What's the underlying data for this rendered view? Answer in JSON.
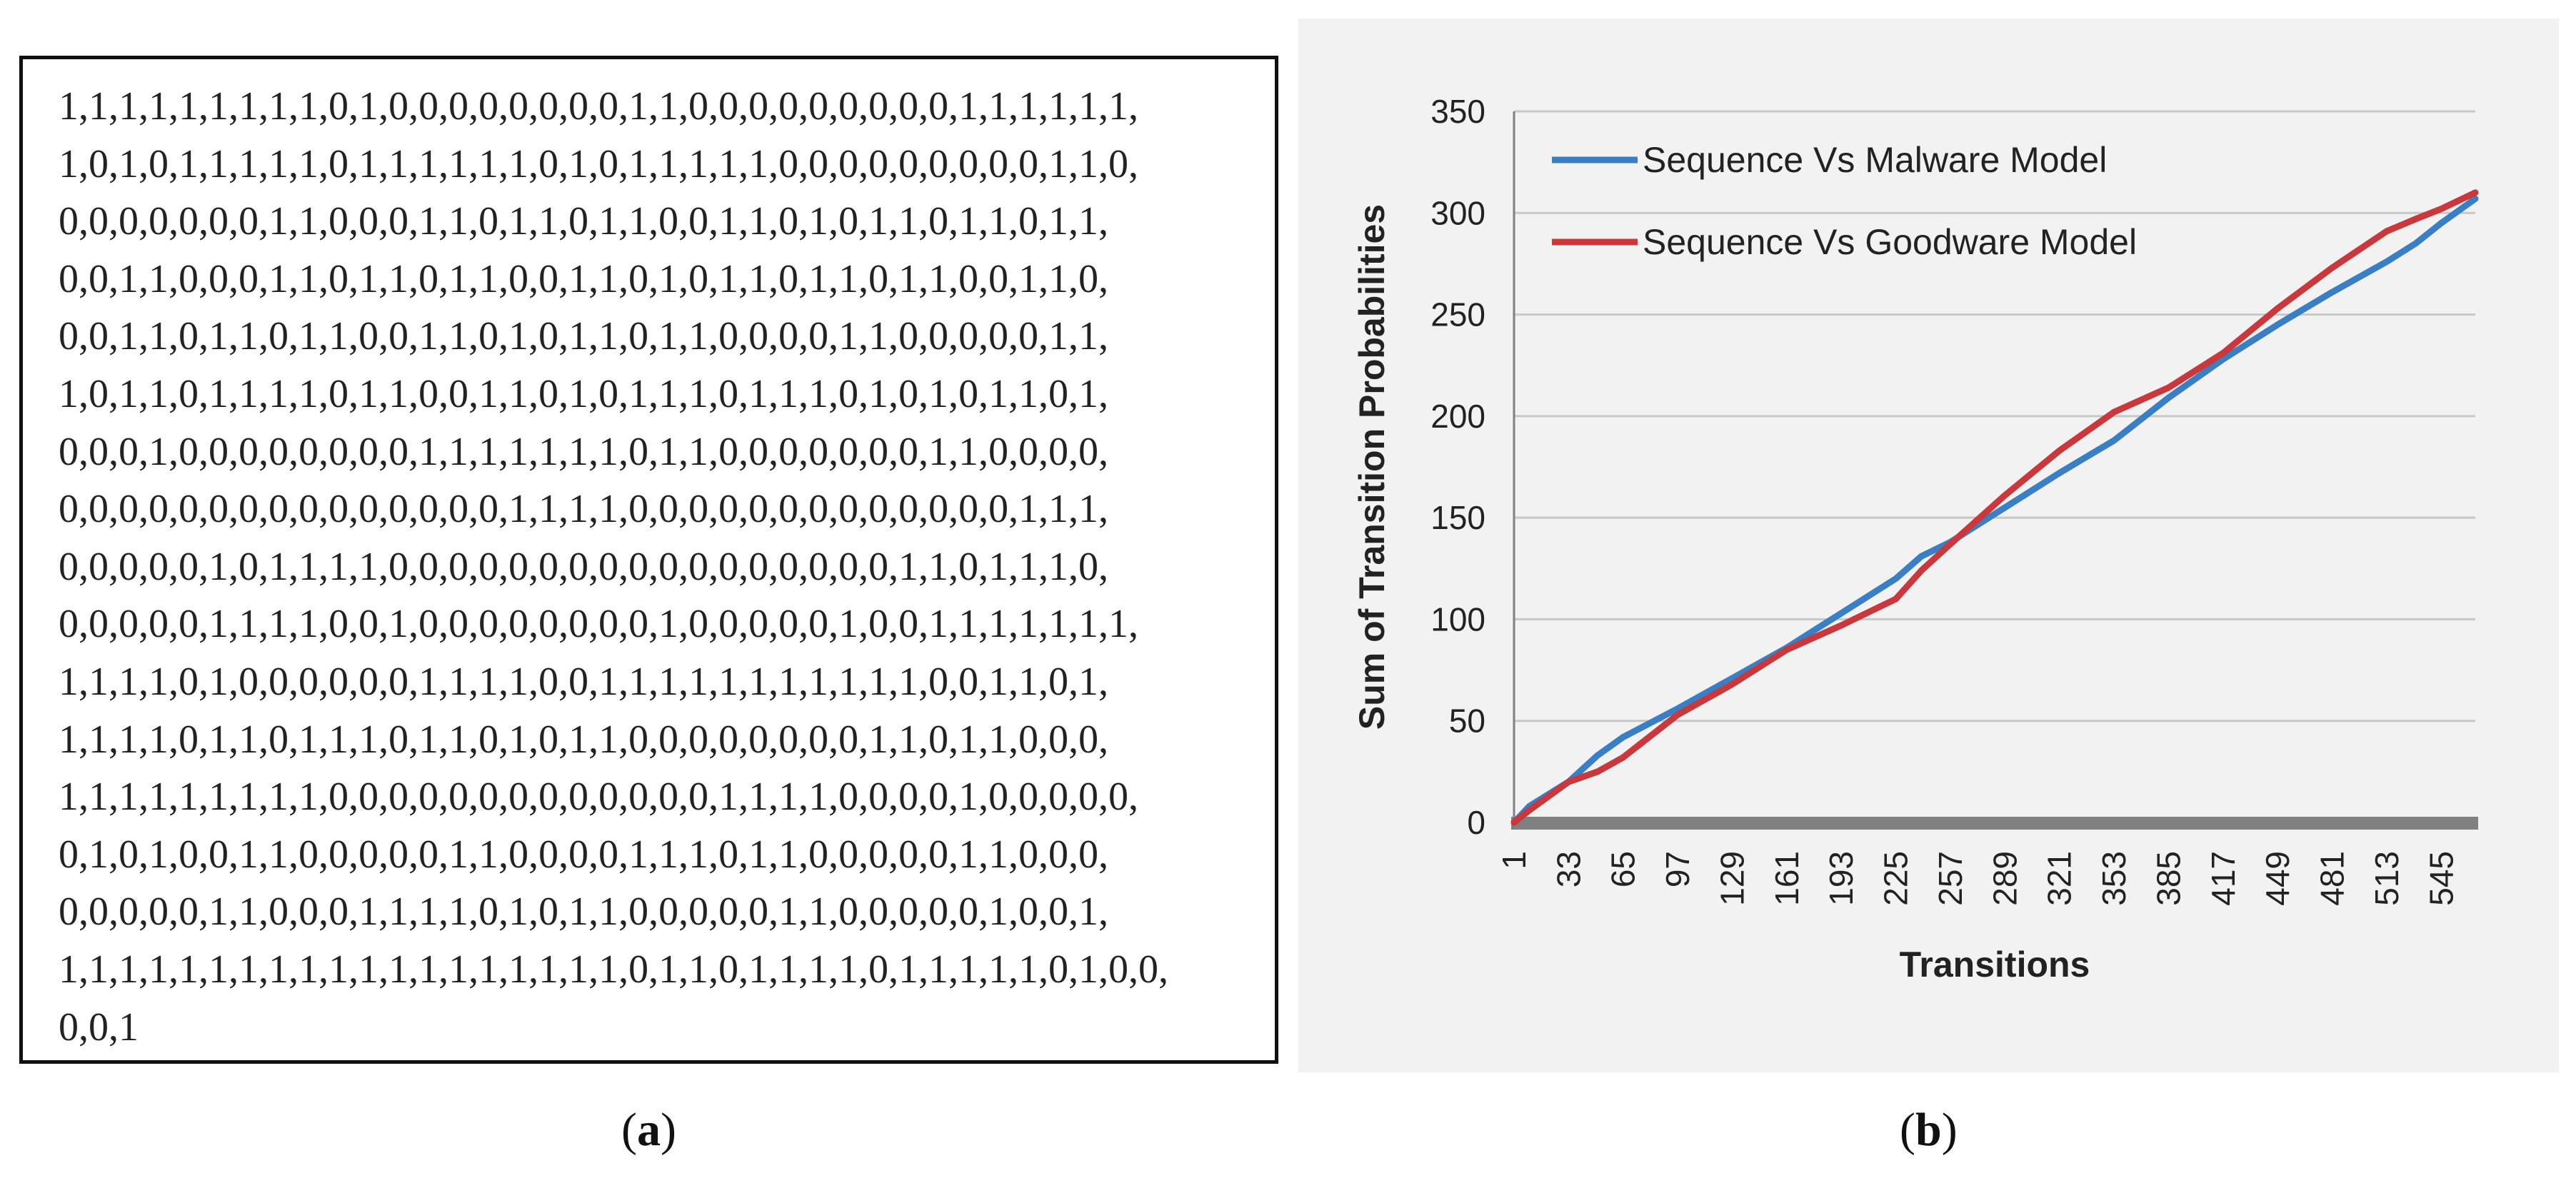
{
  "panel_a": {
    "lines": [
      "1,1,1,1,1,1,1,1,1,0,1,0,0,0,0,0,0,0,0,1,1,0,0,0,0,0,0,0,0,0,1,1,1,1,1,1,",
      "1,0,1,0,1,1,1,1,1,0,1,1,1,1,1,1,0,1,0,1,1,1,1,1,0,0,0,0,0,0,0,0,0,1,1,0,",
      "0,0,0,0,0,0,0,1,1,0,0,0,1,1,0,1,1,0,1,1,0,0,1,1,0,1,0,1,1,0,1,1,0,1,1,",
      "0,0,1,1,0,0,0,1,1,0,1,1,0,1,1,0,0,1,1,0,1,0,1,1,0,1,1,0,1,1,0,0,1,1,0,",
      "0,0,1,1,0,1,1,0,1,1,0,0,1,1,0,1,0,1,1,0,1,1,0,0,0,0,1,1,0,0,0,0,0,1,1,",
      "1,0,1,1,0,1,1,1,1,0,1,1,0,0,1,1,0,1,0,1,1,1,0,1,1,1,0,1,0,1,0,1,1,0,1,",
      "0,0,0,1,0,0,0,0,0,0,0,0,1,1,1,1,1,1,1,0,1,1,0,0,0,0,0,0,0,1,1,0,0,0,0,",
      "0,0,0,0,0,0,0,0,0,0,0,0,0,0,0,1,1,1,1,0,0,0,0,0,0,0,0,0,0,0,0,0,1,1,1,",
      "0,0,0,0,0,1,0,1,1,1,1,0,0,0,0,0,0,0,0,0,0,0,0,0,0,0,0,0,1,1,0,1,1,1,0,",
      "0,0,0,0,0,1,1,1,1,0,0,1,0,0,0,0,0,0,0,0,1,0,0,0,0,0,1,0,0,1,1,1,1,1,1,1,",
      "1,1,1,1,0,1,0,0,0,0,0,0,1,1,1,1,0,0,1,1,1,1,1,1,1,1,1,1,1,0,0,1,1,0,1,",
      "1,1,1,1,0,1,1,0,1,1,1,0,1,1,0,1,0,1,1,0,0,0,0,0,0,0,0,1,1,0,1,1,0,0,0,",
      "1,1,1,1,1,1,1,1,1,0,0,0,0,0,0,0,0,0,0,0,0,0,1,1,1,1,0,0,0,0,1,0,0,0,0,0,",
      "0,1,0,1,0,0,1,1,0,0,0,0,0,1,1,0,0,0,0,1,1,1,0,1,1,0,0,0,0,0,1,1,0,0,0,",
      "0,0,0,0,0,1,1,0,0,0,1,1,1,1,0,1,0,1,1,0,0,0,0,0,1,1,0,0,0,0,0,1,0,0,1,",
      "1,1,1,1,1,1,1,1,1,1,1,1,1,1,1,1,1,1,1,0,1,1,0,1,1,1,1,0,1,1,1,1,1,0,1,0,0,",
      "0,0,1"
    ],
    "caption": "(a)"
  },
  "panel_b": {
    "caption": "(b)"
  },
  "colors": {
    "malware": "#3a7fc4",
    "goodware": "#c8383c",
    "grid": "#c8c8c8",
    "axis": "#808080",
    "panel_background": "#f2f2f2"
  },
  "chart_data": {
    "type": "line",
    "title": "",
    "xlabel": "Transitions",
    "ylabel": "Sum of Transition Probabilities",
    "x_tick_labels": [
      "1",
      "33",
      "65",
      "97",
      "129",
      "161",
      "193",
      "225",
      "257",
      "289",
      "321",
      "353",
      "385",
      "417",
      "449",
      "481",
      "513",
      "545"
    ],
    "y_tick_labels": [
      "0",
      "50",
      "100",
      "150",
      "200",
      "250",
      "300",
      "350"
    ],
    "xlim": [
      1,
      565
    ],
    "ylim": [
      0,
      350
    ],
    "grid": true,
    "legend_position": "top-left",
    "x": [
      1,
      10,
      33,
      50,
      65,
      97,
      129,
      161,
      193,
      225,
      240,
      257,
      289,
      321,
      353,
      385,
      417,
      449,
      481,
      513,
      530,
      545,
      565
    ],
    "series": [
      {
        "name": "Sequence Vs Malware Model",
        "values": [
          0,
          8,
          20,
          33,
          42,
          56,
          71,
          86,
          103,
          120,
          131,
          138,
          155,
          172,
          188,
          209,
          228,
          245,
          261,
          276,
          285,
          295,
          307
        ]
      },
      {
        "name": "Sequence Vs Goodware Model",
        "values": [
          0,
          6,
          20,
          25,
          32,
          53,
          68,
          85,
          97,
          110,
          124,
          137,
          161,
          183,
          202,
          214,
          231,
          253,
          273,
          291,
          297,
          302,
          310
        ]
      }
    ]
  }
}
